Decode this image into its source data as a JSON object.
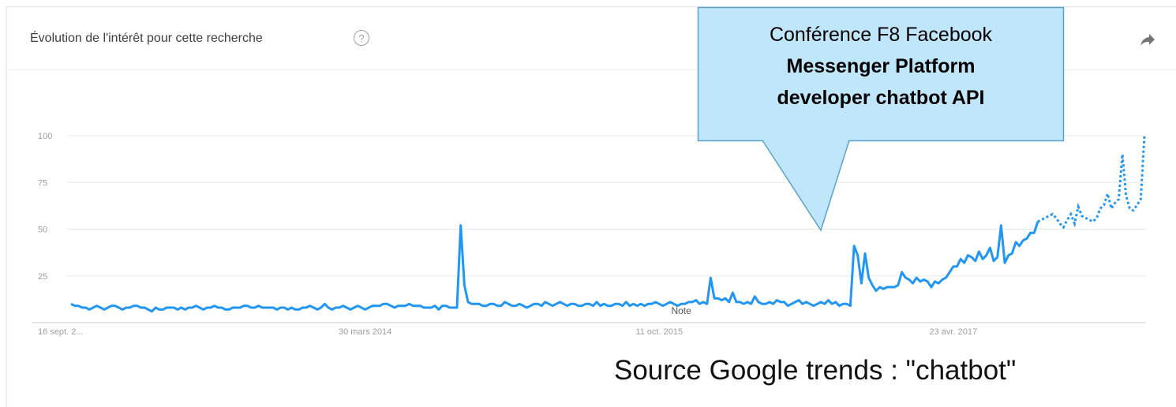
{
  "header": {
    "title": "Évolution de l'intérêt pour cette recherche",
    "help_glyph": "?",
    "help_icon": "question-circle-icon",
    "share_icon": "share-arrow-icon"
  },
  "callout": {
    "line1": "Conférence F8 Facebook",
    "line2": "Messenger Platform",
    "line3": "developer chatbot API"
  },
  "source_text": "Source Google trends : \"chatbot\"",
  "colors": {
    "line": "#2196f3",
    "callout_fill": "#bfe6fb",
    "callout_border": "#5aa3c8",
    "grid": "#e8e8e8"
  },
  "chart_data": {
    "type": "line",
    "ylim": [
      0,
      100
    ],
    "yticks": [
      25,
      50,
      75,
      100
    ],
    "grid": true,
    "x_ticks": [
      {
        "label": "16 sept. 2...",
        "index": 0
      },
      {
        "label": "30 mars 2014",
        "index": 80
      },
      {
        "label": "11 oct. 2015",
        "index": 160
      },
      {
        "label": "23 avr. 2017",
        "index": 240
      }
    ],
    "annotation": {
      "label": "Note",
      "index": 166
    },
    "partial_from_index": 263,
    "values": [
      10,
      9,
      9,
      8,
      8,
      7,
      8,
      9,
      8,
      7,
      8,
      9,
      9,
      8,
      7,
      8,
      8,
      9,
      9,
      8,
      8,
      7,
      6,
      8,
      7,
      7,
      8,
      8,
      8,
      7,
      8,
      7,
      8,
      8,
      9,
      8,
      7,
      8,
      8,
      9,
      8,
      8,
      7,
      7,
      8,
      8,
      8,
      9,
      9,
      8,
      8,
      9,
      8,
      8,
      8,
      8,
      7,
      8,
      8,
      7,
      8,
      7,
      7,
      8,
      8,
      9,
      8,
      7,
      8,
      10,
      8,
      7,
      8,
      8,
      9,
      8,
      7,
      8,
      9,
      8,
      7,
      8,
      9,
      9,
      9,
      10,
      10,
      9,
      8,
      9,
      9,
      9,
      10,
      9,
      9,
      9,
      8,
      8,
      8,
      9,
      7,
      9,
      9,
      8,
      8,
      8,
      52,
      20,
      11,
      10,
      10,
      10,
      9,
      9,
      10,
      10,
      9,
      9,
      11,
      10,
      9,
      9,
      10,
      9,
      8,
      9,
      10,
      10,
      9,
      11,
      10,
      9,
      10,
      11,
      10,
      9,
      10,
      10,
      9,
      9,
      10,
      10,
      9,
      11,
      9,
      10,
      9,
      9,
      10,
      10,
      9,
      11,
      9,
      10,
      9,
      10,
      9,
      10,
      10,
      11,
      10,
      9,
      10,
      11,
      10,
      9,
      10,
      10,
      11,
      11,
      12,
      10,
      11,
      10,
      24,
      13,
      13,
      12,
      13,
      11,
      16,
      11,
      11,
      10,
      11,
      10,
      14,
      11,
      10,
      10,
      11,
      10,
      12,
      11,
      11,
      9,
      10,
      11,
      12,
      10,
      11,
      10,
      9,
      10,
      11,
      10,
      12,
      10,
      11,
      9,
      10,
      10,
      9,
      41,
      36,
      21,
      37,
      24,
      20,
      17,
      19,
      18,
      19,
      19,
      19,
      20,
      27,
      24,
      23,
      21,
      24,
      22,
      23,
      22,
      19,
      22,
      21,
      23,
      24,
      27,
      30,
      30,
      34,
      32,
      36,
      35,
      33,
      38,
      34,
      36,
      40,
      33,
      35,
      52,
      32,
      36,
      37,
      43,
      41,
      44,
      45,
      48,
      48,
      54,
      55,
      56,
      57,
      58,
      56,
      53,
      51,
      55,
      58,
      53,
      62,
      57,
      56,
      55,
      54,
      56,
      61,
      63,
      69,
      61,
      64,
      66,
      90,
      68,
      61,
      60,
      63,
      66,
      100
    ]
  }
}
